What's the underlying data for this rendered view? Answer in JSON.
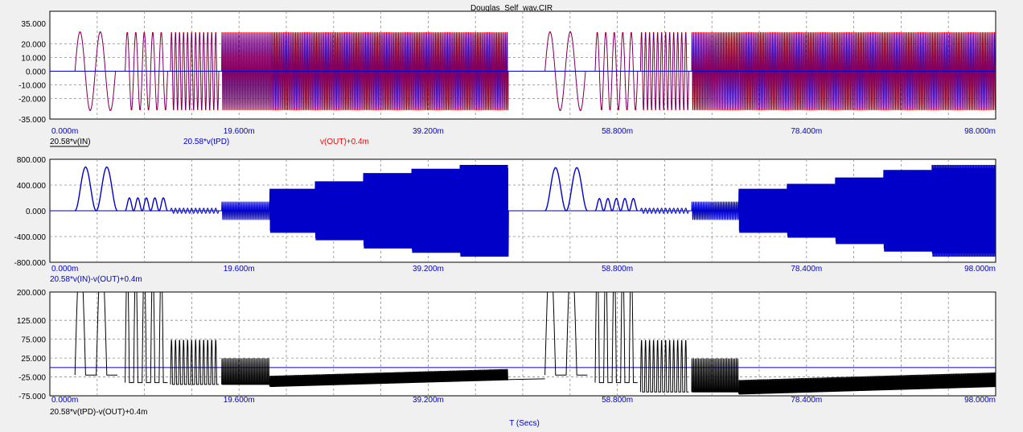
{
  "window": {
    "title": "Douglas_Self_wav.CIR"
  },
  "x_axis": {
    "ticks": [
      "0.000m",
      "19.600m",
      "39.200m",
      "58.800m",
      "78.400m",
      "98.000m"
    ],
    "label": "T (Secs)"
  },
  "colors": {
    "red": "#ff0000",
    "blue": "#0000c8",
    "black": "#000000",
    "grid": "#8c8c8c",
    "plot_bg": "#ffffff",
    "window_bg": "#f0f0f0"
  },
  "chart_data": [
    {
      "type": "line",
      "title": "Douglas_Self_wav.CIR",
      "xlim": [
        0,
        98
      ],
      "ylim": [
        -35,
        35
      ],
      "y_ticks": [
        "35.000",
        "20.000",
        "10.000",
        "0.000",
        "-10.000",
        "-20.000",
        "-35.000"
      ],
      "y_values": [
        35,
        20,
        10,
        0,
        -10,
        -20,
        -35
      ],
      "grid": true,
      "series": [
        {
          "name": "20.58*v(IN)",
          "color": "#000000"
        },
        {
          "name": "20.58*v(tPD)",
          "color": "#0000c8"
        },
        {
          "name": "v(OUT)+0.4m",
          "color": "#ff0000"
        }
      ],
      "bursts": [
        {
          "t0": 2.6,
          "t1": 6.8,
          "cycles": 2,
          "amp": 29
        },
        {
          "t0": 7.8,
          "t1": 12.2,
          "cycles": 5,
          "amp": 29
        },
        {
          "t0": 12.5,
          "t1": 17.5,
          "cycles": 12,
          "amp": 29
        },
        {
          "t0": 17.8,
          "t1": 22.8,
          "cycles": 30,
          "amp": 29
        },
        {
          "t0": 22.8,
          "t1": 47.5,
          "cycles": 160,
          "amp": 29
        },
        {
          "t0": 51.3,
          "t1": 55.5,
          "cycles": 2,
          "amp": 29
        },
        {
          "t0": 56.5,
          "t1": 60.9,
          "cycles": 5,
          "amp": 29
        },
        {
          "t0": 61.2,
          "t1": 66.2,
          "cycles": 12,
          "amp": 29
        },
        {
          "t0": 66.5,
          "t1": 71.4,
          "cycles": 30,
          "amp": 29
        },
        {
          "t0": 71.4,
          "t1": 98,
          "cycles": 170,
          "amp": 29
        }
      ]
    },
    {
      "type": "line",
      "xlim": [
        0,
        98
      ],
      "ylim": [
        -800,
        800
      ],
      "y_ticks": [
        "800.000",
        "400.000",
        "0.000",
        "-400.000",
        "-800.000"
      ],
      "y_values": [
        800,
        400,
        0,
        -400,
        -800
      ],
      "grid": true,
      "series": [
        {
          "name": "20.58*v(IN)-v(OUT)+0.4m",
          "color": "#0000c8"
        }
      ],
      "bursts": [
        {
          "t0": 2.6,
          "t1": 7.0,
          "cycles": 2,
          "amp": 680,
          "rect": true
        },
        {
          "t0": 7.8,
          "t1": 12.2,
          "cycles": 5,
          "amp": 200,
          "rect": true
        },
        {
          "t0": 12.5,
          "t1": 17.5,
          "cycles": 12,
          "amp": 40,
          "sym": true
        },
        {
          "t0": 17.8,
          "t1": 22.8,
          "cycles": 30,
          "amp": 140,
          "sym": true
        },
        {
          "t0": 22.8,
          "t1": 27.5,
          "cycles": 35,
          "amp": 340,
          "sym": true
        },
        {
          "t0": 27.5,
          "t1": 32.5,
          "cycles": 35,
          "amp": 460,
          "sym": true
        },
        {
          "t0": 32.5,
          "t1": 37.5,
          "cycles": 35,
          "amp": 590,
          "sym": true
        },
        {
          "t0": 37.5,
          "t1": 42.5,
          "cycles": 35,
          "amp": 660,
          "sym": true
        },
        {
          "t0": 42.5,
          "t1": 47.5,
          "cycles": 35,
          "amp": 720,
          "sym": true
        },
        {
          "t0": 51.3,
          "t1": 55.7,
          "cycles": 2,
          "amp": 670,
          "rect": true
        },
        {
          "t0": 56.5,
          "t1": 60.9,
          "cycles": 5,
          "amp": 190,
          "rect": true
        },
        {
          "t0": 61.2,
          "t1": 66.2,
          "cycles": 12,
          "amp": 40,
          "sym": true
        },
        {
          "t0": 66.5,
          "t1": 71.4,
          "cycles": 30,
          "amp": 140,
          "sym": true
        },
        {
          "t0": 71.4,
          "t1": 76.4,
          "cycles": 35,
          "amp": 340,
          "sym": true
        },
        {
          "t0": 76.4,
          "t1": 81.4,
          "cycles": 35,
          "amp": 420,
          "sym": true
        },
        {
          "t0": 81.4,
          "t1": 86.4,
          "cycles": 35,
          "amp": 520,
          "sym": true
        },
        {
          "t0": 86.4,
          "t1": 91.4,
          "cycles": 35,
          "amp": 640,
          "sym": true
        },
        {
          "t0": 91.4,
          "t1": 98,
          "cycles": 40,
          "amp": 720,
          "sym": true
        }
      ]
    },
    {
      "type": "line",
      "xlim": [
        0,
        98
      ],
      "ylim": [
        -75,
        200
      ],
      "y_ticks": [
        "200.000",
        "125.000",
        "75.000",
        "25.000",
        "-25.000",
        "-75.000"
      ],
      "y_values": [
        200,
        125,
        75,
        25,
        -25,
        -75
      ],
      "grid": true,
      "series": [
        {
          "name": "20.58*v(tPD)-v(OUT)+0.4m",
          "color": "#000000"
        }
      ],
      "baseline": 0,
      "bursts": [
        {
          "t0": 2.6,
          "t1": 7.0,
          "cycles": 2,
          "amp": 320,
          "off": 150,
          "lo": -20
        },
        {
          "t0": 7.8,
          "t1": 12.2,
          "cycles": 5,
          "amp": 300,
          "off": 140,
          "lo": -40
        },
        {
          "t0": 12.5,
          "t1": 17.5,
          "cycles": 12,
          "amp": 90,
          "off": 30,
          "lo": -45
        },
        {
          "t0": 17.8,
          "t1": 22.8,
          "cycles": 30,
          "amp": 50,
          "off": 0,
          "lo": -45
        },
        {
          "t0": 22.8,
          "t1": 47.5,
          "cycles": 160,
          "amp": 10,
          "off": -28,
          "lo": -50,
          "ramp": 18
        },
        {
          "t0": 51.3,
          "t1": 55.7,
          "cycles": 2,
          "amp": 320,
          "off": 150,
          "lo": -20
        },
        {
          "t0": 56.5,
          "t1": 60.9,
          "cycles": 5,
          "amp": 300,
          "off": 140,
          "lo": -40
        },
        {
          "t0": 61.2,
          "t1": 66.2,
          "cycles": 12,
          "amp": 90,
          "off": 30,
          "lo": -65
        },
        {
          "t0": 66.5,
          "t1": 71.4,
          "cycles": 30,
          "amp": 50,
          "off": 0,
          "lo": -65
        },
        {
          "t0": 71.4,
          "t1": 98,
          "cycles": 170,
          "amp": 12,
          "off": -40,
          "lo": -70,
          "ramp": 20
        }
      ]
    }
  ]
}
